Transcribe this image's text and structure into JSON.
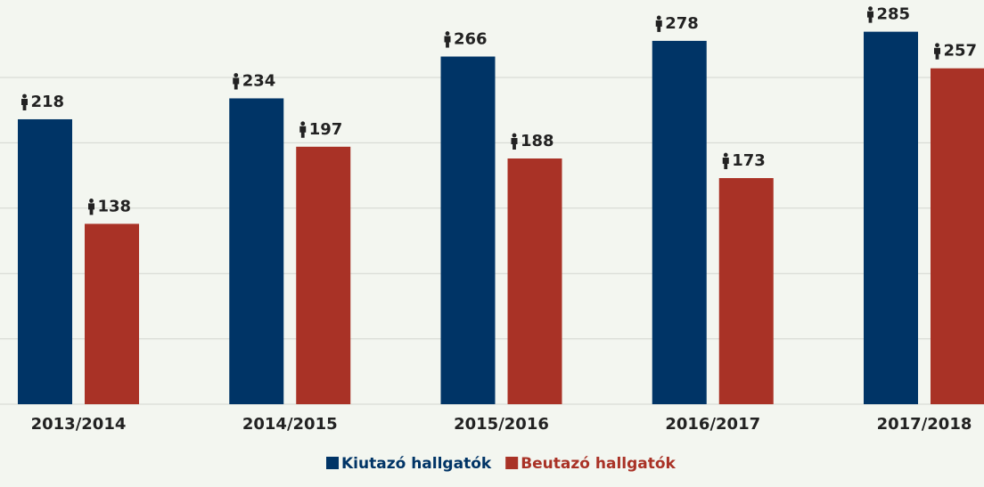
{
  "chart_data": {
    "type": "bar",
    "categories": [
      "2013/2014",
      "2014/2015",
      "2015/2016",
      "2016/2017",
      "2017/2018"
    ],
    "series": [
      {
        "name": "Kiutazó hallgatók",
        "color": "#003466",
        "values": [
          218,
          234,
          266,
          278,
          285
        ]
      },
      {
        "name": "Beutazó hallgatók",
        "color": "#a93226",
        "values": [
          138,
          197,
          188,
          173,
          257
        ]
      }
    ],
    "ylim": [
      0,
      300
    ],
    "yticks": [
      0,
      50,
      100,
      150,
      200,
      250
    ],
    "grid": true
  }
}
